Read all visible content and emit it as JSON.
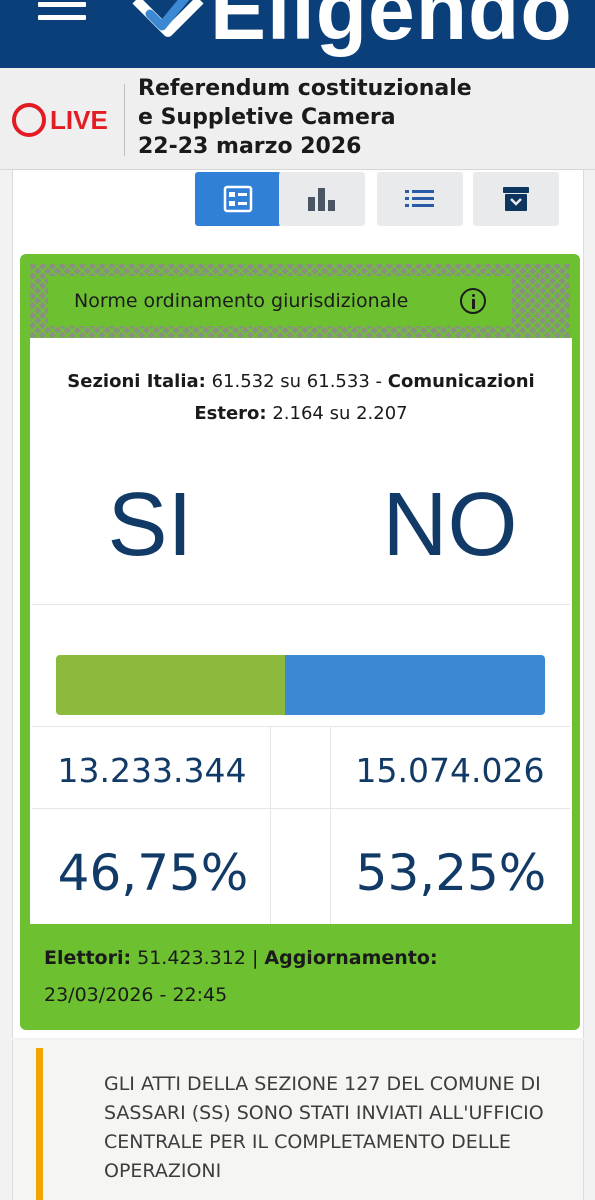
{
  "header": {
    "app_name": "Eligendo",
    "brand_color": "#0b3f7a"
  },
  "live": {
    "label": "LIVE",
    "color": "#e31b23",
    "title_lines": [
      "Referendum costituzionale",
      "e Suppletive Camera",
      "22-23 marzo 2026"
    ]
  },
  "toolbar": {
    "items": [
      {
        "icon": "summary-view-icon",
        "active": true
      },
      {
        "icon": "bar-chart-icon",
        "active": false
      },
      {
        "icon": "list-view-icon",
        "active": false
      },
      {
        "icon": "archive-download-icon",
        "active": false
      }
    ]
  },
  "card": {
    "title": "Norme ordinamento giurisdizionale",
    "accent_color": "#6dc131",
    "sezioni": {
      "label_italia": "Sezioni Italia:",
      "value_italia": "61.532 su 61.533 -",
      "label_comunicazioni": "Comunicazioni",
      "label_estero": "Estero:",
      "value_estero": "2.164 su 2.207"
    },
    "results": {
      "si_label": "SI",
      "no_label": "NO",
      "si_votes": "13.233.344",
      "no_votes": "15.074.026",
      "si_percent": "46,75%",
      "no_percent": "53,25%",
      "si_share": 0.4675,
      "si_color": "#8cba3d",
      "no_color": "#3c88d2"
    },
    "footer": {
      "elettori_label": "Elettori:",
      "elettori_value": "51.423.312 |",
      "aggiornamento_label": "Aggiornamento:",
      "aggiornamento_value": "23/03/2026 - 22:45"
    }
  },
  "notice": {
    "text": "GLI ATTI DELLA SEZIONE 127 DEL COMUNE DI SASSARI (SS) SONO STATI INVIATI ALL'UFFICIO CENTRALE PER IL COMPLETAMENTO DELLE OPERAZIONI",
    "accent_color": "#f0a500"
  }
}
